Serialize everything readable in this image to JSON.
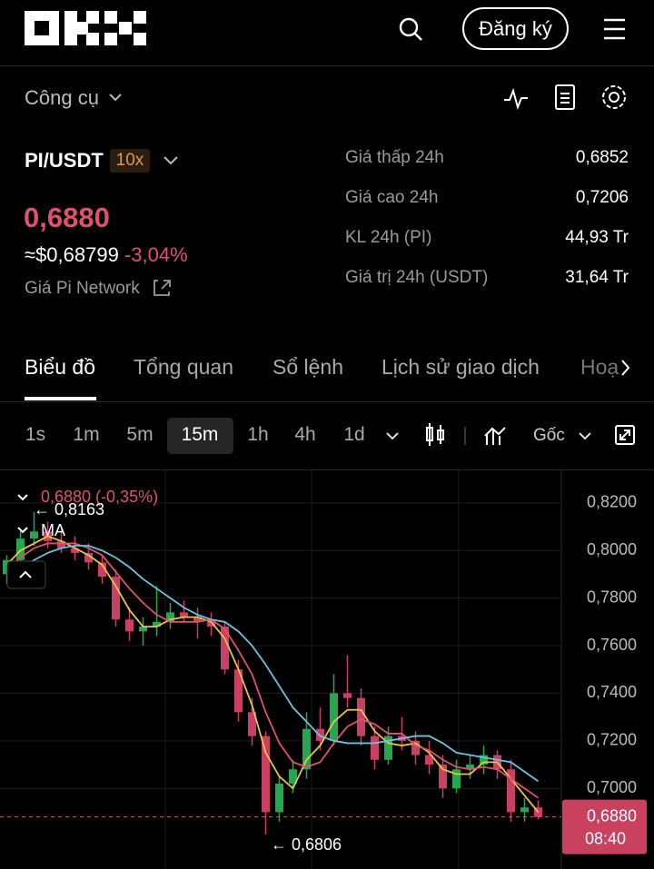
{
  "header": {
    "signup": "Đăng ký"
  },
  "toolbar": {
    "tools": "Công cụ"
  },
  "pair": {
    "symbol": "PI/USDT",
    "leverage": "10x",
    "price": "0,6880",
    "usd_price": "≈$0,68799",
    "change": "-3,04%",
    "link": "Giá Pi Network"
  },
  "stats": [
    {
      "label": "Giá thấp 24h",
      "value": "0,6852"
    },
    {
      "label": "Giá cao 24h",
      "value": "0,7206"
    },
    {
      "label": "KL 24h (PI)",
      "value": "44,93 Tr"
    },
    {
      "label": "Giá trị 24h (USDT)",
      "value": "31,64 Tr"
    }
  ],
  "tabs": [
    "Biểu đồ",
    "Tổng quan",
    "Sổ lệnh",
    "Lịch sử giao dịch",
    "Hoạ"
  ],
  "intervals": [
    "1s",
    "1m",
    "5m",
    "15m",
    "1h",
    "4h",
    "1d"
  ],
  "price_type": "Gốc",
  "chart_data": {
    "type": "candlestick",
    "ylim": [
      0.6661,
      0.8337
    ],
    "yticks": [
      {
        "value": 0.82,
        "label": "0,8200"
      },
      {
        "value": 0.8,
        "label": "0,8000"
      },
      {
        "value": 0.78,
        "label": "0,7800"
      },
      {
        "value": 0.76,
        "label": "0,7600"
      },
      {
        "value": 0.74,
        "label": "0,7400"
      },
      {
        "value": 0.72,
        "label": "0,7200"
      },
      {
        "value": 0.7,
        "label": "0,7000"
      }
    ],
    "up_color": "#25a750",
    "down_color": "#ca3f64",
    "open": [
      0.79,
      0.796,
      0.805,
      0.808,
      0.804,
      0.801,
      0.799,
      0.795,
      0.789,
      0.771,
      0.766,
      0.768,
      0.77,
      0.774,
      0.772,
      0.77,
      0.768,
      0.75,
      0.732,
      0.722,
      0.69,
      0.702,
      0.708,
      0.725,
      0.72,
      0.74,
      0.738,
      0.722,
      0.712,
      0.722,
      0.72,
      0.714,
      0.71,
      0.7,
      0.708,
      0.71,
      0.714,
      0.708,
      0.69,
      0.692
    ],
    "high": [
      0.798,
      0.808,
      0.8163,
      0.812,
      0.809,
      0.806,
      0.803,
      0.798,
      0.792,
      0.776,
      0.772,
      0.785,
      0.778,
      0.779,
      0.776,
      0.774,
      0.77,
      0.754,
      0.738,
      0.724,
      0.705,
      0.712,
      0.732,
      0.734,
      0.748,
      0.756,
      0.742,
      0.726,
      0.726,
      0.73,
      0.724,
      0.72,
      0.714,
      0.712,
      0.714,
      0.718,
      0.716,
      0.712,
      0.696,
      0.695
    ],
    "low": [
      0.786,
      0.793,
      0.802,
      0.801,
      0.799,
      0.796,
      0.792,
      0.786,
      0.768,
      0.762,
      0.76,
      0.764,
      0.767,
      0.77,
      0.763,
      0.764,
      0.748,
      0.728,
      0.718,
      0.6806,
      0.686,
      0.698,
      0.704,
      0.716,
      0.718,
      0.734,
      0.718,
      0.708,
      0.71,
      0.716,
      0.71,
      0.706,
      0.696,
      0.698,
      0.704,
      0.706,
      0.704,
      0.686,
      0.686,
      0.687
    ],
    "close": [
      0.796,
      0.805,
      0.808,
      0.804,
      0.801,
      0.799,
      0.795,
      0.789,
      0.771,
      0.766,
      0.768,
      0.77,
      0.774,
      0.772,
      0.77,
      0.768,
      0.75,
      0.732,
      0.722,
      0.69,
      0.702,
      0.708,
      0.725,
      0.72,
      0.74,
      0.738,
      0.722,
      0.712,
      0.722,
      0.72,
      0.714,
      0.71,
      0.7,
      0.708,
      0.71,
      0.714,
      0.708,
      0.69,
      0.692,
      0.688
    ],
    "ma_lines": [
      {
        "color": "#e8c547",
        "values": [
          0.794,
          0.8,
          0.803,
          0.806,
          0.804,
          0.801,
          0.798,
          0.794,
          0.785,
          0.775,
          0.768,
          0.768,
          0.771,
          0.772,
          0.772,
          0.77,
          0.763,
          0.75,
          0.735,
          0.715,
          0.705,
          0.7,
          0.712,
          0.718,
          0.728,
          0.733,
          0.733,
          0.724,
          0.719,
          0.718,
          0.719,
          0.715,
          0.708,
          0.706,
          0.706,
          0.711,
          0.711,
          0.704,
          0.697,
          0.69
        ]
      },
      {
        "color": "#e2506f",
        "values": [
          0.792,
          0.797,
          0.801,
          0.803,
          0.803,
          0.803,
          0.801,
          0.798,
          0.791,
          0.784,
          0.778,
          0.773,
          0.77,
          0.77,
          0.77,
          0.771,
          0.767,
          0.758,
          0.748,
          0.732,
          0.719,
          0.711,
          0.709,
          0.711,
          0.719,
          0.726,
          0.729,
          0.727,
          0.723,
          0.723,
          0.718,
          0.716,
          0.712,
          0.709,
          0.708,
          0.709,
          0.708,
          0.704,
          0.7,
          0.696
        ]
      },
      {
        "color": "#6cc3e0",
        "values": [
          0.788,
          0.792,
          0.796,
          0.799,
          0.801,
          0.802,
          0.802,
          0.8,
          0.797,
          0.793,
          0.788,
          0.784,
          0.78,
          0.776,
          0.773,
          0.771,
          0.77,
          0.766,
          0.76,
          0.752,
          0.743,
          0.734,
          0.728,
          0.722,
          0.72,
          0.719,
          0.719,
          0.719,
          0.72,
          0.721,
          0.722,
          0.722,
          0.719,
          0.715,
          0.714,
          0.713,
          0.712,
          0.711,
          0.707,
          0.703
        ]
      }
    ],
    "legend_price": "0,6880 (-0,35%)",
    "high_label": "← 0,8163",
    "low_label": "← 0,6806",
    "ma_label": "MA",
    "price_line": {
      "value": 0.688,
      "label": "0,6880",
      "time": "08:40"
    }
  }
}
